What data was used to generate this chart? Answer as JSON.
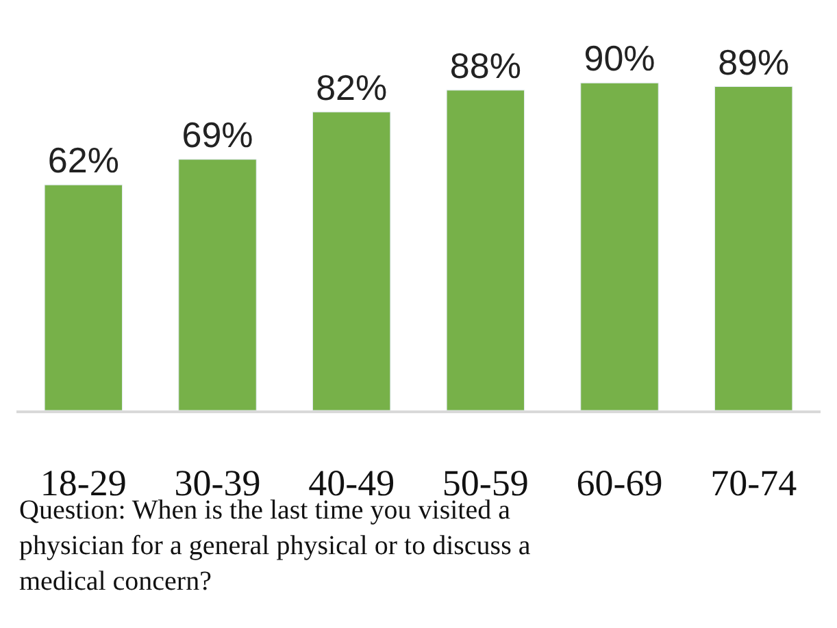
{
  "chart_data": {
    "type": "bar",
    "categories": [
      "18-29",
      "30-39",
      "40-49",
      "50-59",
      "60-69",
      "70-74"
    ],
    "values": [
      62,
      69,
      82,
      88,
      90,
      89
    ],
    "value_labels": [
      "62%",
      "69%",
      "82%",
      "88%",
      "90%",
      "89%"
    ],
    "color": "#77b149",
    "tick_labels": "x",
    "legend": false,
    "annotations": [
      "Question: When is the last time you visited a physician for a general physical or to discuss a medical concern?"
    ]
  }
}
